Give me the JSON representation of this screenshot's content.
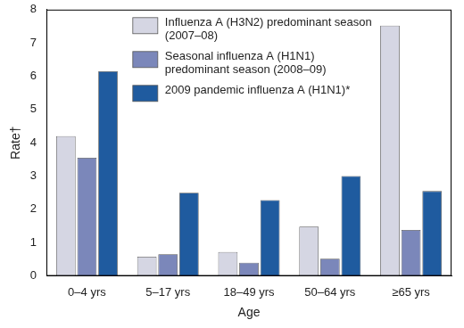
{
  "chart_data": {
    "type": "bar",
    "x_label": "Age",
    "y_label": "Rate†",
    "categories": [
      "0–4 yrs",
      "5–17 yrs",
      "18–49 yrs",
      "50–64 yrs",
      "≥65 yrs"
    ],
    "series": [
      {
        "name": "Influenza A (H3N2) predominant season (2007–08)",
        "color": "#d5d6e3",
        "values": [
          4.2,
          0.58,
          0.72,
          1.48,
          7.52
        ]
      },
      {
        "name": "Seasonal influenza A (H1N1) predominant season (2008–09)",
        "color": "#7b87ba",
        "values": [
          3.55,
          0.65,
          0.4,
          0.52,
          1.38
        ]
      },
      {
        "name": "2009 pandemic influenza A (H1N1)*",
        "color": "#1f5b9f",
        "values": [
          6.15,
          2.5,
          2.28,
          3.0,
          2.55
        ]
      }
    ],
    "ylim": [
      0,
      8
    ],
    "yticks": [
      0,
      1,
      2,
      3,
      4,
      5,
      6,
      7,
      8
    ],
    "grid": false,
    "legend": "top"
  }
}
